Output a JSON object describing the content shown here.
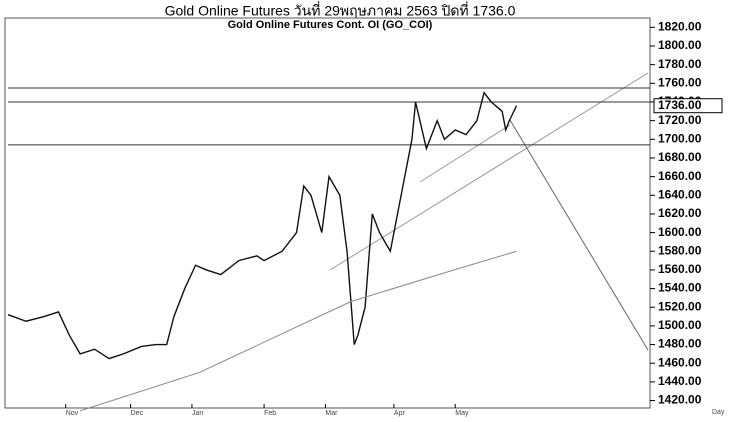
{
  "chart_data": {
    "type": "line",
    "title": "Gold Online Futures วันที่   29พฤษภาคม   2563 ปิดที่   1736.0",
    "subtitle": "Gold Online Futures Cont. OI (GO_COI)",
    "x_unit": "Day",
    "xlim": [
      0,
      178
    ],
    "ylim": [
      1412,
      1830
    ],
    "xticks": [
      {
        "value": 16,
        "label": "Nov"
      },
      {
        "value": 34,
        "label": "Dec"
      },
      {
        "value": 51,
        "label": "Jan"
      },
      {
        "value": 71,
        "label": "Feb"
      },
      {
        "value": 88,
        "label": "Mar"
      },
      {
        "value": 107,
        "label": "Apr"
      },
      {
        "value": 124,
        "label": "May"
      }
    ],
    "yticks": [
      {
        "value": 1420,
        "label": "1420.00"
      },
      {
        "value": 1440,
        "label": "1440.00"
      },
      {
        "value": 1460,
        "label": "1460.00"
      },
      {
        "value": 1480,
        "label": "1480.00"
      },
      {
        "value": 1500,
        "label": "1500.00"
      },
      {
        "value": 1520,
        "label": "1520.00"
      },
      {
        "value": 1540,
        "label": "1540.00"
      },
      {
        "value": 1560,
        "label": "1560.00"
      },
      {
        "value": 1580,
        "label": "1580.00"
      },
      {
        "value": 1600,
        "label": "1600.00"
      },
      {
        "value": 1620,
        "label": "1620.00"
      },
      {
        "value": 1640,
        "label": "1640.00"
      },
      {
        "value": 1660,
        "label": "1660.00"
      },
      {
        "value": 1680,
        "label": "1680.00"
      },
      {
        "value": 1700,
        "label": "1700.00"
      },
      {
        "value": 1720,
        "label": "1720.00"
      },
      {
        "value": 1740,
        "label": "1740.00"
      },
      {
        "value": 1760,
        "label": "1760.00"
      },
      {
        "value": 1780,
        "label": "1780.00"
      },
      {
        "value": 1800,
        "label": "1800.00"
      },
      {
        "value": 1820,
        "label": "1820.00"
      }
    ],
    "levels": [
      1755,
      1740,
      1694
    ],
    "last_price": {
      "value": 1736,
      "label": "1736.00"
    },
    "series": [
      {
        "color": "#111111",
        "x": [
          0,
          5,
          10,
          14,
          17,
          20,
          24,
          28,
          32,
          37,
          41,
          44,
          46,
          49,
          52,
          55,
          59,
          64,
          69,
          71,
          76,
          80,
          82,
          84,
          87,
          89,
          92,
          94,
          96,
          97,
          99,
          101,
          103,
          106,
          109,
          112,
          113,
          116,
          119,
          121,
          124,
          127,
          130,
          132,
          134,
          137,
          138,
          139,
          141
        ],
        "values": [
          1512,
          1505,
          1510,
          1515,
          1490,
          1470,
          1475,
          1465,
          1470,
          1478,
          1480,
          1480,
          1510,
          1540,
          1565,
          1560,
          1555,
          1570,
          1575,
          1570,
          1580,
          1600,
          1650,
          1640,
          1600,
          1660,
          1640,
          1580,
          1480,
          1490,
          1520,
          1620,
          1600,
          1580,
          1640,
          1700,
          1740,
          1690,
          1720,
          1700,
          1710,
          1705,
          1720,
          1750,
          1740,
          1730,
          1710,
          1720,
          1736
        ]
      },
      {
        "color": "#888888",
        "x": [
          20,
          53,
          95,
          122,
          141
        ],
        "values": [
          1409,
          1450,
          1526,
          1558,
          1580
        ]
      }
    ]
  }
}
